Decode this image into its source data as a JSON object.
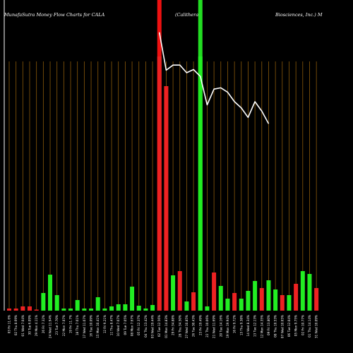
{
  "chart_data": {
    "type": "bar",
    "title_left": "MunafaSutra  Money Flow  Charts for CALA",
    "title_mid": "(Calithera",
    "title_right": "Biosciences, Inc.) M",
    "categories": [
      "03 Fri 11.6%",
      "02 Thu 8.69%",
      "01 Wed 7.04%",
      "30 Tue 6.09%",
      "29 Mon 4.11%",
      "26 Fri 7.32%",
      "24 Wed 11.94%",
      "23 Tue 7.70%",
      "22 Mon 7.07%",
      "19 Fri 11.7%",
      "18 Thu 7.01%",
      "17 Wed 11.07%",
      "16 Tue 10.09%",
      "15 Mon 10.41%",
      "12 Fri 9.21%",
      "11 Thu 8.47%",
      "10 Wed 7.07%",
      "09 Tue 7.05%",
      "08 Mon 7.67%",
      "05 Fri 12.37%",
      "04 Thu 13.42%",
      "03 Wed 19.44%",
      "02 Tue 12.56%",
      "01 Mon 14.83%",
      "29 Fri 34.88%",
      "28 Thu 34.50%",
      "27 Wed 10.85%",
      "26 Tue 30.43%",
      "23 Fri 19.49%",
      "22 Thu 10.06%",
      "21 Wed 11.69%",
      "20 Tue 14.16%",
      "19 Mon 19.94%",
      "16 Fri 9.72%",
      "15 Thu 9.38%",
      "14 Wed 8.34%",
      "13 Tue 12.13%",
      "12 Mon 14.35%",
      "09 Fri 13.80%",
      "08 Thu 10.53%",
      "07 Wed 10.65%",
      "06 Tue 12.04%",
      "05 Mon 9.75%",
      "02 Fri 10.77%",
      "01 Thu 14.14%",
      "31 Wed 10.09%"
    ],
    "values": [
      3,
      3,
      6,
      6,
      1,
      25,
      51,
      22,
      3,
      3,
      15,
      3,
      3,
      19,
      3,
      6,
      9,
      9,
      34,
      7,
      3,
      8,
      360,
      318,
      50,
      56,
      13,
      26,
      360,
      6,
      54,
      35,
      17,
      25,
      17,
      28,
      42,
      32,
      43,
      30,
      22,
      22,
      38,
      56,
      52,
      32
    ],
    "directions": [
      "down",
      "down",
      "down",
      "down",
      "down",
      "up",
      "up",
      "up",
      "up",
      "up",
      "up",
      "up",
      "up",
      "up",
      "up",
      "up",
      "up",
      "up",
      "up",
      "up",
      "up",
      "up",
      "down",
      "down",
      "up",
      "down",
      "up",
      "down",
      "up",
      "up",
      "down",
      "up",
      "up",
      "down",
      "up",
      "up",
      "up",
      "down",
      "up",
      "up",
      "down",
      "up",
      "down",
      "up",
      "up",
      "down"
    ],
    "price_line": {
      "start_index": 22,
      "values": [
        5.4,
        4.8,
        4.88,
        4.88,
        4.76,
        4.81,
        4.7,
        4.25,
        4.5,
        4.52,
        4.45,
        4.3,
        4.2,
        4.05,
        4.3,
        4.15,
        3.95
      ]
    },
    "value_axis_max": 360,
    "price_axis_range": [
      3.0,
      5.6
    ],
    "colors": {
      "background": "#000000",
      "up": "#22ee22",
      "down": "#ee2222",
      "grid": "#8b5a0a",
      "price_line": "#ffffff",
      "text": "#ffffff",
      "highlight_up": "#22dd22",
      "highlight_down": "#ee1111"
    },
    "highlights": [
      {
        "index": 22,
        "type": "down"
      },
      {
        "index": 28,
        "type": "up"
      }
    ]
  }
}
